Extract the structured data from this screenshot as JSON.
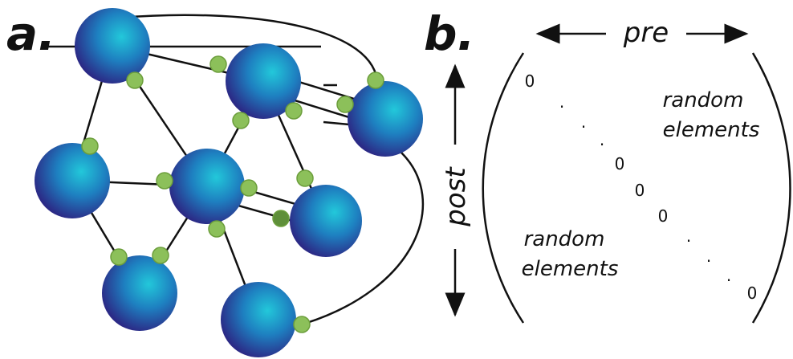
{
  "panel_a": {
    "label": "a."
  },
  "panel_b": {
    "label": "b.",
    "pre_label": "pre",
    "post_label": "post",
    "upper_label": [
      "random",
      "elements"
    ],
    "lower_label": [
      "random",
      "elements"
    ],
    "diagonal": [
      "0",
      ".",
      ".",
      ".",
      "0",
      "0",
      "0",
      ".",
      ".",
      ".",
      "0"
    ]
  }
}
